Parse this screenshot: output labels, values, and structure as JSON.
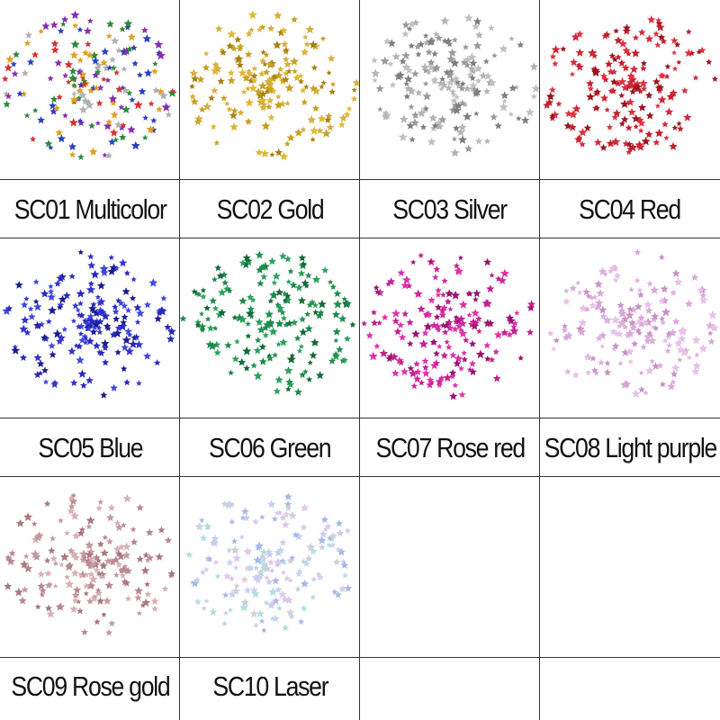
{
  "swatches": [
    {
      "code_label": "SC01 Multicolor",
      "color": "#d43a4a",
      "palette": [
        "#d93030",
        "#2a8a3a",
        "#2a3fbf",
        "#e0a020",
        "#b0b0b0",
        "#8a2ab0"
      ],
      "icon": "star-confetti-icon"
    },
    {
      "code_label": "SC02 Gold",
      "color": "#c9a020",
      "palette": [
        "#c9a020",
        "#e0b830",
        "#a88010",
        "#d8b040"
      ],
      "icon": "star-confetti-icon"
    },
    {
      "code_label": "SC03 Silver",
      "color": "#a8a8a8",
      "palette": [
        "#9a9a9a",
        "#c0c0c0",
        "#7e7e7e",
        "#b4b4b4"
      ],
      "icon": "star-confetti-icon"
    },
    {
      "code_label": "SC04  Red",
      "color": "#c41e2a",
      "palette": [
        "#c41e2a",
        "#e03040",
        "#9a1520",
        "#d02838"
      ],
      "icon": "star-confetti-icon"
    },
    {
      "code_label": "SC05 Blue",
      "color": "#2a2ac0",
      "palette": [
        "#2a2ac0",
        "#3c48e0",
        "#1c1c90",
        "#3434d0"
      ],
      "icon": "star-confetti-icon"
    },
    {
      "code_label": "SC06 Green",
      "color": "#1e8a4a",
      "palette": [
        "#1e8a4a",
        "#2aa05a",
        "#146a38",
        "#228f50"
      ],
      "icon": "star-confetti-icon"
    },
    {
      "code_label": "SC07 Rose red",
      "color": "#c42090",
      "palette": [
        "#c42090",
        "#e030a8",
        "#9a1470",
        "#d028a0"
      ],
      "icon": "star-confetti-icon"
    },
    {
      "code_label": "SC08 Light purple",
      "color": "#d8a8d8",
      "palette": [
        "#d8a8d8",
        "#e8c0e8",
        "#c890c8",
        "#dcb0dc"
      ],
      "icon": "star-confetti-icon"
    },
    {
      "code_label": "SC09 Rose gold",
      "color": "#c49aa0",
      "palette": [
        "#c49aa0",
        "#d8b0b4",
        "#a87880",
        "#b88890"
      ],
      "icon": "star-confetti-icon"
    },
    {
      "code_label": "SC10 Laser",
      "color": "#b8c0e0",
      "palette": [
        "#c8d0f0",
        "#e0c8e8",
        "#b0e0e0",
        "#d0d0d8",
        "#a8b8e8"
      ],
      "icon": "star-confetti-icon"
    }
  ]
}
